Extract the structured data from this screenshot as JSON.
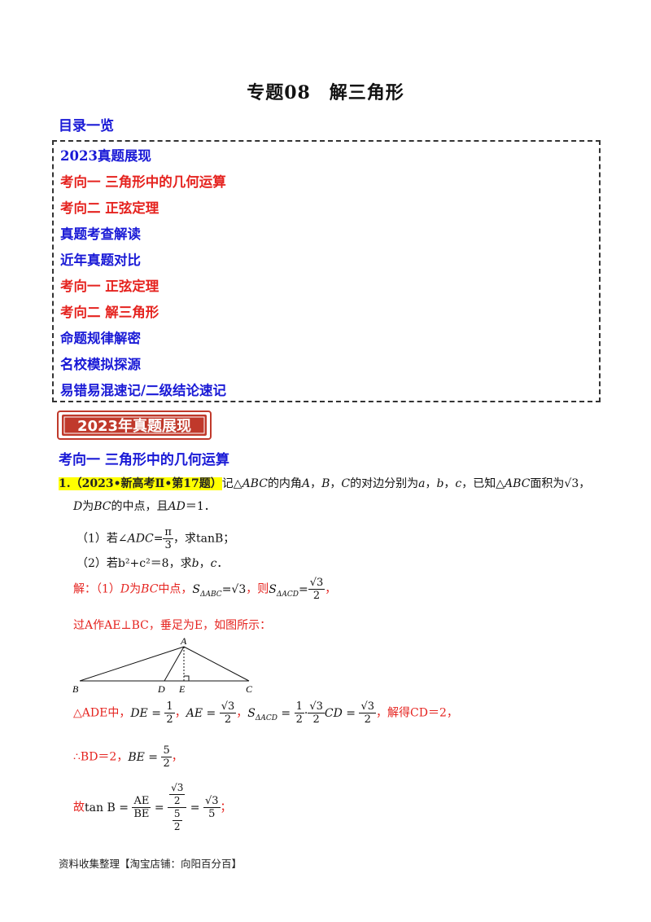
{
  "title": "专题08　解三角形",
  "toc": {
    "heading": "目录一览",
    "items": [
      {
        "label": "2023真题展现",
        "color": "blue"
      },
      {
        "label": "考向一  三角形中的几何运算",
        "color": "red"
      },
      {
        "label": "考向二  正弦定理",
        "color": "red"
      },
      {
        "label": "真题考查解读",
        "color": "blue"
      },
      {
        "label": "近年真题对比",
        "color": "blue"
      },
      {
        "label": "考向一  正弦定理",
        "color": "red"
      },
      {
        "label": "考向二  解三角形",
        "color": "red"
      },
      {
        "label": "命题规律解密",
        "color": "blue"
      },
      {
        "label": "名校模拟探源",
        "color": "blue"
      },
      {
        "label": "易错易混速记/二级结论速记",
        "color": "blue"
      }
    ]
  },
  "banner": "2023年真题展现",
  "section_heading": "考向一  三角形中的几何运算",
  "problem": {
    "number": "1.",
    "source": "（2023•新高考Ⅱ•第17题）",
    "line1_a": "记△",
    "abc": "ABC",
    "line1_b": "的内角",
    "A": "A",
    "B": "B",
    "C": "C",
    "comma": "，",
    "line1_c": "的对边分别为",
    "a": "a",
    "b": "b",
    "c": "c",
    "line1_d": "，已知△",
    "line1_e": "面积为",
    "sqrt3": "√3",
    "three": "3",
    "line2_D": "D",
    "line2_a": "为",
    "line2_BC": "BC",
    "line2_b": "的中点，且",
    "line2_AD": "AD",
    "line2_c": "＝1．",
    "q1_a": "（1）若∠",
    "q1_ADC": "ADC",
    "q1_b": "=",
    "pi": "π",
    "q1_c": "，求",
    "tanB": "tanB",
    "q1_d": "；",
    "q2_a": "（2）若",
    "q2_expr": "b²+c²",
    "q2_b": "＝8，求",
    "q2_c": "．"
  },
  "solution": {
    "s1_a": "解：（1）",
    "s1_b": "为",
    "s1_c": "中点，",
    "S": "S",
    "sub_ABC": "ΔABC",
    "sub_ACD": "ΔACD",
    "eq": "=",
    "then": "，则",
    "two": "2",
    "s2": "过A作AE⊥BC，垂足为E，如图所示：",
    "s3_a": "△ADE中，",
    "DE": "DE",
    "AE": "AE",
    "BE": "BE",
    "one": "1",
    "five": "5",
    "dot": "·",
    "CD": "CD",
    "s3_b": "，解得",
    "s3_c": "CD＝2，",
    "s4_a": "∴BD＝2，",
    "s5_a": "故",
    "tanB_text": "tan B",
    "semicolon": "；"
  },
  "figure": {
    "A": "A",
    "B": "B",
    "C": "C",
    "D": "D",
    "E": "E"
  },
  "footer": "资料收集整理【淘宝店铺：向阳百分百】",
  "colors": {
    "blue": "#1a1ad6",
    "red": "#e5231f",
    "highlight": "#ffff00",
    "banner": "#c0392b"
  }
}
